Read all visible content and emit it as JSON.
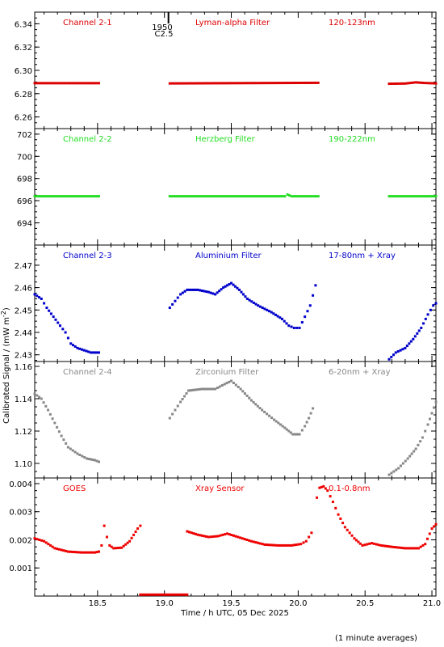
{
  "chart_data": [
    {
      "type": "scatter",
      "panel_labels": [
        "Channel 2-1",
        "Lyman-alpha Filter",
        "120-123nm"
      ],
      "color": "#dd0000",
      "ylim": [
        6.25,
        6.35
      ],
      "yticks": [
        "6.26",
        "6.28",
        "6.30",
        "6.32",
        "6.34"
      ],
      "series": [
        {
          "values": [
            [
              18.03,
              6.289
            ],
            [
              18.51,
              6.289
            ]
          ]
        },
        {
          "values": [
            [
              19.04,
              6.2888
            ],
            [
              20.15,
              6.2893
            ]
          ]
        },
        {
          "values": [
            [
              20.68,
              6.2885
            ],
            [
              20.8,
              6.2887
            ],
            [
              20.88,
              6.2897
            ],
            [
              20.94,
              6.2892
            ],
            [
              21.03,
              6.2888
            ]
          ]
        }
      ]
    },
    {
      "type": "scatter",
      "panel_labels": [
        "Channel 2-2",
        "Herzberg Filter",
        "190-222nm"
      ],
      "color": "#22dd22",
      "ylim": [
        692.0,
        702.5
      ],
      "yticks": [
        "694",
        "696",
        "698",
        "700",
        "702"
      ],
      "series": [
        {
          "values": [
            [
              18.03,
              696.4
            ],
            [
              18.51,
              696.4
            ]
          ]
        },
        {
          "values": [
            [
              19.04,
              696.4
            ],
            [
              19.9,
              696.4
            ],
            [
              19.92,
              696.55
            ],
            [
              19.95,
              696.4
            ],
            [
              20.15,
              696.4
            ]
          ]
        },
        {
          "values": [
            [
              20.68,
              696.4
            ],
            [
              21.03,
              696.4
            ]
          ]
        }
      ]
    },
    {
      "type": "scatter",
      "panel_labels": [
        "Channel 2-3",
        "Aluminium Filter",
        "17-80nm + Xray"
      ],
      "color": "#0000cc",
      "ylim": [
        2.427,
        2.479
      ],
      "yticks": [
        "2.43",
        "2.44",
        "2.45",
        "2.46",
        "2.47"
      ],
      "series": [
        {
          "values": [
            [
              18.03,
              2.457
            ],
            [
              18.08,
              2.455
            ],
            [
              18.12,
              2.451
            ],
            [
              18.17,
              2.447
            ],
            [
              18.22,
              2.443
            ],
            [
              18.26,
              2.44
            ],
            [
              18.3,
              2.435
            ],
            [
              18.35,
              2.433
            ],
            [
              18.4,
              2.432
            ],
            [
              18.45,
              2.431
            ],
            [
              18.51,
              2.431
            ]
          ]
        },
        {
          "values": [
            [
              19.04,
              2.451
            ],
            [
              19.08,
              2.454
            ],
            [
              19.12,
              2.457
            ],
            [
              19.17,
              2.459
            ],
            [
              19.25,
              2.459
            ],
            [
              19.33,
              2.458
            ],
            [
              19.38,
              2.457
            ],
            [
              19.44,
              2.46
            ],
            [
              19.5,
              2.462
            ],
            [
              19.56,
              2.459
            ],
            [
              19.62,
              2.455
            ],
            [
              19.7,
              2.452
            ],
            [
              19.8,
              2.449
            ],
            [
              19.88,
              2.446
            ],
            [
              19.93,
              2.443
            ],
            [
              19.97,
              2.442
            ],
            [
              20.01,
              2.442
            ],
            [
              20.05,
              2.447
            ],
            [
              20.09,
              2.452
            ],
            [
              20.13,
              2.461
            ]
          ]
        },
        {
          "values": [
            [
              20.68,
              2.428
            ],
            [
              20.73,
              2.431
            ],
            [
              20.8,
              2.433
            ],
            [
              20.86,
              2.437
            ],
            [
              20.92,
              2.442
            ],
            [
              20.97,
              2.448
            ],
            [
              21.01,
              2.452
            ],
            [
              21.03,
              2.453
            ]
          ]
        }
      ]
    },
    {
      "type": "scatter",
      "panel_labels": [
        "Channel 2-4",
        "Zirconium Filter",
        "6-20nm + Xray"
      ],
      "color": "#888888",
      "ylim": [
        1.091,
        1.163
      ],
      "yticks": [
        "1.10",
        "1.12",
        "1.14",
        "1.16"
      ],
      "series": [
        {
          "values": [
            [
              18.03,
              1.143
            ],
            [
              18.08,
              1.14
            ],
            [
              18.13,
              1.133
            ],
            [
              18.18,
              1.125
            ],
            [
              18.23,
              1.117
            ],
            [
              18.28,
              1.11
            ],
            [
              18.35,
              1.106
            ],
            [
              18.42,
              1.103
            ],
            [
              18.48,
              1.102
            ],
            [
              18.51,
              1.101
            ]
          ]
        },
        {
          "values": [
            [
              19.04,
              1.128
            ],
            [
              19.08,
              1.133
            ],
            [
              19.12,
              1.138
            ],
            [
              19.18,
              1.145
            ],
            [
              19.28,
              1.146
            ],
            [
              19.38,
              1.146
            ],
            [
              19.45,
              1.149
            ],
            [
              19.5,
              1.151
            ],
            [
              19.57,
              1.146
            ],
            [
              19.65,
              1.139
            ],
            [
              19.73,
              1.133
            ],
            [
              19.82,
              1.127
            ],
            [
              19.9,
              1.122
            ],
            [
              19.96,
              1.118
            ],
            [
              20.01,
              1.118
            ],
            [
              20.05,
              1.123
            ],
            [
              20.08,
              1.128
            ],
            [
              20.11,
              1.134
            ]
          ]
        },
        {
          "values": [
            [
              20.68,
              1.093
            ],
            [
              20.75,
              1.097
            ],
            [
              20.82,
              1.103
            ],
            [
              20.88,
              1.109
            ],
            [
              20.93,
              1.116
            ],
            [
              20.97,
              1.124
            ],
            [
              21.0,
              1.131
            ],
            [
              21.03,
              1.138
            ]
          ]
        }
      ]
    },
    {
      "type": "scatter",
      "panel_labels": [
        "GOES",
        "Xray Sensor",
        "0.1-0.8nm"
      ],
      "color": "#ee0000",
      "ylim": [
        0.0,
        0.0042
      ],
      "yticks": [
        "0.001",
        "0.002",
        "0.003",
        "0.004"
      ],
      "xlabel": "Time / h UTC, 05 Dec 2025",
      "xticks": [
        "18.5",
        "19.0",
        "19.5",
        "20.0",
        "20.5",
        "21.0"
      ],
      "series": [
        {
          "values": [
            [
              18.03,
              0.00205
            ],
            [
              18.1,
              0.00195
            ],
            [
              18.18,
              0.0017
            ],
            [
              18.28,
              0.00158
            ],
            [
              18.38,
              0.00155
            ],
            [
              18.48,
              0.00155
            ],
            [
              18.51,
              0.00158
            ]
          ]
        },
        {
          "values": [
            [
              18.53,
              0.0018
            ],
            [
              18.55,
              0.0025
            ],
            [
              18.57,
              0.0021
            ],
            [
              18.59,
              0.0018
            ],
            [
              18.62,
              0.0017
            ],
            [
              18.68,
              0.00172
            ],
            [
              18.74,
              0.00195
            ],
            [
              18.8,
              0.0024
            ],
            [
              18.82,
              0.0025
            ]
          ]
        },
        {
          "values": [
            [
              18.82,
              5e-05
            ],
            [
              19.17,
              5e-05
            ]
          ]
        },
        {
          "values": [
            [
              19.17,
              0.0023
            ],
            [
              19.25,
              0.00218
            ],
            [
              19.33,
              0.0021
            ],
            [
              19.4,
              0.00213
            ],
            [
              19.47,
              0.00222
            ],
            [
              19.55,
              0.0021
            ],
            [
              19.65,
              0.00195
            ],
            [
              19.75,
              0.00183
            ],
            [
              19.85,
              0.0018
            ],
            [
              19.95,
              0.0018
            ],
            [
              20.02,
              0.00185
            ],
            [
              20.06,
              0.00195
            ],
            [
              20.1,
              0.00225
            ]
          ]
        },
        {
          "values": [
            [
              20.14,
              0.0035
            ],
            [
              20.16,
              0.00385
            ],
            [
              20.19,
              0.0039
            ],
            [
              20.22,
              0.00375
            ],
            [
              20.26,
              0.00335
            ],
            [
              20.3,
              0.0029
            ],
            [
              20.35,
              0.00245
            ],
            [
              20.42,
              0.00205
            ],
            [
              20.48,
              0.0018
            ],
            [
              20.55,
              0.00188
            ],
            [
              20.62,
              0.0018
            ],
            [
              20.7,
              0.00175
            ],
            [
              20.8,
              0.0017
            ],
            [
              20.9,
              0.0017
            ],
            [
              20.95,
              0.00185
            ],
            [
              21.0,
              0.0024
            ],
            [
              21.03,
              0.00255
            ]
          ]
        }
      ]
    }
  ],
  "x_range": [
    18.03,
    21.03
  ],
  "xticks_major": [
    18.5,
    19.0,
    19.5,
    20.0,
    20.5,
    21.0
  ],
  "shared_ylabel": "Calibrated Signal / (mW m",
  "shared_ylabel_sup": "-2",
  "shared_ylabel_end": ")",
  "marker_top": "1950",
  "marker_sub": "C2.5",
  "marker_x": 19.03,
  "footer_note": "(1 minute averages)"
}
